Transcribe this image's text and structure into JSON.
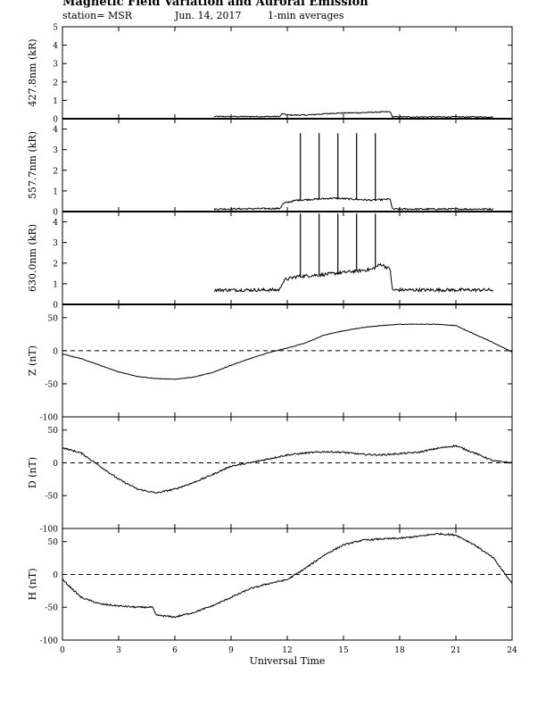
{
  "header": {
    "title": "Magnetic Field Variation and Auroral Emission",
    "station": "station= MSR",
    "date": "Jun. 14, 2017",
    "averaging": "1-min averages"
  },
  "chart_data": {
    "type": "line",
    "xlabel": "Universal Time",
    "xlim": [
      0,
      24
    ],
    "xticks": [
      0,
      3,
      6,
      9,
      12,
      15,
      18,
      21,
      24
    ],
    "panels": [
      {
        "id": "p4278",
        "ylabel": "427.8nm (kR)",
        "ylim": [
          0,
          5
        ],
        "yticks": [
          0,
          1,
          2,
          3,
          4,
          5
        ],
        "zero_line": "solid",
        "noise": 0.03,
        "points": [
          [
            8.1,
            0.12
          ],
          [
            11.6,
            0.12
          ],
          [
            11.75,
            0.28
          ],
          [
            12.0,
            0.2
          ],
          [
            13.0,
            0.2
          ],
          [
            14.5,
            0.3
          ],
          [
            16.0,
            0.33
          ],
          [
            17.5,
            0.38
          ],
          [
            17.6,
            0.1
          ],
          [
            23.0,
            0.1
          ]
        ],
        "spikes": []
      },
      {
        "id": "p5577",
        "ylabel": "557.7nm (kR)",
        "ylim": [
          0,
          4.5
        ],
        "yticks": [
          0,
          1,
          2,
          3,
          4
        ],
        "zero_line": "solid",
        "noise": 0.04,
        "points": [
          [
            8.1,
            0.12
          ],
          [
            11.6,
            0.15
          ],
          [
            11.8,
            0.4
          ],
          [
            12.5,
            0.55
          ],
          [
            14.5,
            0.65
          ],
          [
            15.5,
            0.6
          ],
          [
            16.5,
            0.55
          ],
          [
            17.5,
            0.6
          ],
          [
            17.6,
            0.12
          ],
          [
            23.0,
            0.12
          ]
        ],
        "spikes": [
          [
            12.7,
            3.8
          ],
          [
            13.7,
            3.8
          ],
          [
            14.7,
            3.8
          ],
          [
            15.7,
            3.8
          ],
          [
            16.7,
            3.8
          ]
        ]
      },
      {
        "id": "p6300",
        "ylabel": "630.0nm (kR)",
        "ylim": [
          0,
          4.5
        ],
        "yticks": [
          0,
          1,
          2,
          3,
          4
        ],
        "zero_line": "solid",
        "noise": 0.08,
        "points": [
          [
            8.1,
            0.7
          ],
          [
            11.6,
            0.7
          ],
          [
            11.7,
            1.0
          ],
          [
            11.9,
            1.2
          ],
          [
            12.5,
            1.35
          ],
          [
            14.0,
            1.45
          ],
          [
            15.5,
            1.6
          ],
          [
            16.5,
            1.7
          ],
          [
            17.0,
            1.95
          ],
          [
            17.5,
            1.7
          ],
          [
            17.6,
            0.7
          ],
          [
            23.0,
            0.7
          ]
        ],
        "spikes": [
          [
            12.7,
            4.4
          ],
          [
            13.7,
            4.4
          ],
          [
            14.7,
            4.4
          ],
          [
            15.7,
            4.4
          ],
          [
            16.7,
            4.4
          ]
        ]
      },
      {
        "id": "pZ",
        "ylabel": "Z (nT)",
        "ylim": [
          -100,
          70
        ],
        "yticks": [
          -100,
          -50,
          0,
          50
        ],
        "zero_line": "dashed",
        "noise": 0.4,
        "points": [
          [
            0,
            -5
          ],
          [
            1.0,
            -12
          ],
          [
            2.0,
            -22
          ],
          [
            3.0,
            -32
          ],
          [
            4.0,
            -39
          ],
          [
            5.0,
            -42
          ],
          [
            6.0,
            -43
          ],
          [
            7.0,
            -40
          ],
          [
            8.0,
            -33
          ],
          [
            9.0,
            -22
          ],
          [
            10.0,
            -12
          ],
          [
            11.0,
            -3
          ],
          [
            12.0,
            4
          ],
          [
            13.0,
            12
          ],
          [
            14.0,
            24
          ],
          [
            15.0,
            30
          ],
          [
            16.0,
            35
          ],
          [
            17.0,
            38
          ],
          [
            18.0,
            40
          ],
          [
            19.0,
            40
          ],
          [
            20.0,
            40
          ],
          [
            21.0,
            38
          ],
          [
            22.0,
            25
          ],
          [
            23.0,
            12
          ],
          [
            24.0,
            -2
          ]
        ],
        "spikes": []
      },
      {
        "id": "pD",
        "ylabel": "D (nT)",
        "ylim": [
          -100,
          70
        ],
        "yticks": [
          -100,
          -50,
          0,
          50
        ],
        "zero_line": "dashed",
        "noise": 1.2,
        "points": [
          [
            0,
            23
          ],
          [
            1.0,
            15
          ],
          [
            2.0,
            -5
          ],
          [
            3.0,
            -25
          ],
          [
            4.0,
            -40
          ],
          [
            5.0,
            -46
          ],
          [
            6.0,
            -40
          ],
          [
            7.0,
            -30
          ],
          [
            8.0,
            -18
          ],
          [
            9.0,
            -5
          ],
          [
            10.0,
            0
          ],
          [
            11.0,
            6
          ],
          [
            12.0,
            12
          ],
          [
            13.0,
            15
          ],
          [
            14.0,
            17
          ],
          [
            15.0,
            16
          ],
          [
            16.0,
            13
          ],
          [
            17.0,
            12
          ],
          [
            18.0,
            14
          ],
          [
            19.0,
            16
          ],
          [
            20.0,
            22
          ],
          [
            21.0,
            26
          ],
          [
            22.0,
            15
          ],
          [
            23.0,
            3
          ],
          [
            24.0,
            0
          ]
        ],
        "spikes": []
      },
      {
        "id": "pH",
        "ylabel": "H (nT)",
        "ylim": [
          -100,
          70
        ],
        "yticks": [
          -100,
          -50,
          0,
          50
        ],
        "zero_line": "dashed",
        "noise": 1.2,
        "points": [
          [
            0,
            -8
          ],
          [
            1.0,
            -35
          ],
          [
            2.0,
            -45
          ],
          [
            3.0,
            -48
          ],
          [
            4.0,
            -50
          ],
          [
            4.8,
            -50
          ],
          [
            5.0,
            -62
          ],
          [
            6.0,
            -65
          ],
          [
            7.0,
            -58
          ],
          [
            8.0,
            -48
          ],
          [
            9.0,
            -35
          ],
          [
            10.0,
            -22
          ],
          [
            11.0,
            -14
          ],
          [
            12.0,
            -8
          ],
          [
            13.0,
            10
          ],
          [
            14.0,
            30
          ],
          [
            15.0,
            45
          ],
          [
            16.0,
            52
          ],
          [
            17.0,
            54
          ],
          [
            18.0,
            55
          ],
          [
            19.0,
            58
          ],
          [
            20.0,
            62
          ],
          [
            21.0,
            60
          ],
          [
            22.0,
            45
          ],
          [
            23.0,
            25
          ],
          [
            24.0,
            -14
          ]
        ],
        "spikes": []
      }
    ]
  }
}
